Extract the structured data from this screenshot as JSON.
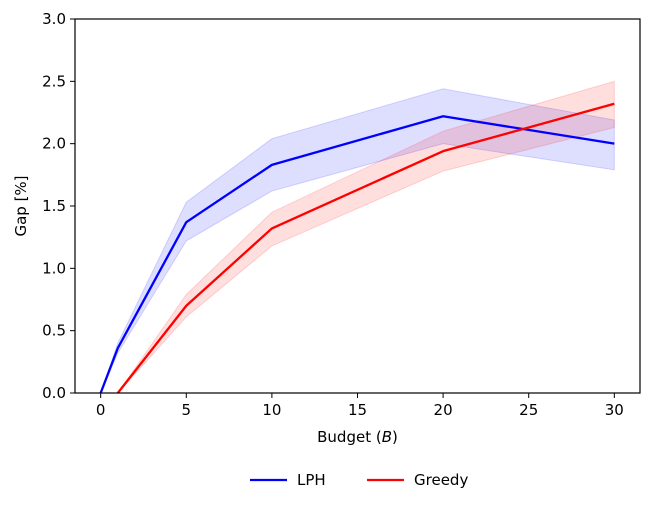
{
  "chart_data": {
    "type": "line",
    "title": "",
    "xlabel": "Budget (",
    "xlabel_var": "B",
    "xlabel_close": ")",
    "ylabel": "Gap [%]",
    "xlim": [
      -1.5,
      31.5
    ],
    "ylim": [
      0.0,
      3.0
    ],
    "xticks": [
      0,
      5,
      10,
      15,
      20,
      25,
      30
    ],
    "yticks": [
      "0.0",
      "0.5",
      "1.0",
      "1.5",
      "2.0",
      "2.5",
      "3.0"
    ],
    "grid": false,
    "legend_position": "bottom-center, outside",
    "series": [
      {
        "name": "LPH",
        "color": "#0000ff",
        "band_color": "#0000ff",
        "x": [
          0,
          1,
          5,
          10,
          20,
          30
        ],
        "y": [
          0.0,
          0.36,
          1.37,
          1.83,
          2.22,
          2.0
        ],
        "lower": [
          0.0,
          0.32,
          1.22,
          1.62,
          2.0,
          1.79
        ],
        "upper": [
          0.0,
          0.4,
          1.53,
          2.04,
          2.44,
          2.19
        ]
      },
      {
        "name": "Greedy",
        "color": "#ff0000",
        "band_color": "#ff0000",
        "x": [
          1,
          5,
          10,
          20,
          30
        ],
        "y": [
          0.0,
          0.7,
          1.32,
          1.94,
          2.32
        ],
        "lower": [
          0.0,
          0.61,
          1.18,
          1.78,
          2.13
        ],
        "upper": [
          0.0,
          0.79,
          1.45,
          2.1,
          2.5
        ]
      }
    ]
  }
}
